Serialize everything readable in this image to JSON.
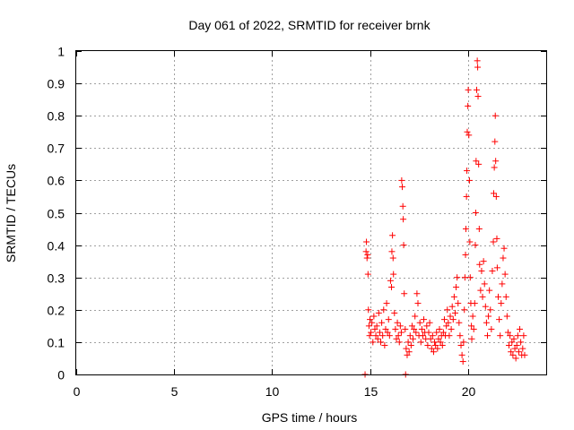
{
  "chart_data": {
    "type": "scatter",
    "title": "Day 061 of 2022, SRMTID for receiver brnk",
    "xlabel": "GPS time / hours",
    "ylabel": "SRMTID / TECUs",
    "xlim": [
      0,
      24
    ],
    "ylim": [
      0,
      1
    ],
    "x_ticks": [
      0,
      5,
      10,
      15,
      20
    ],
    "x_tick_labels": [
      "0",
      "5",
      "10",
      "15",
      "20"
    ],
    "y_ticks": [
      0,
      0.1,
      0.2,
      0.3,
      0.4,
      0.5,
      0.6,
      0.7,
      0.8,
      0.9,
      1
    ],
    "y_tick_labels": [
      "0",
      "0.1",
      "0.2",
      "0.3",
      "0.4",
      "0.5",
      "0.6",
      "0.7",
      "0.8",
      "0.9",
      "1"
    ],
    "grid": true,
    "marker": "+",
    "color": "#ff0000",
    "series": [
      {
        "name": "SRMTID",
        "points": [
          [
            14.75,
            0.0
          ],
          [
            14.8,
            0.38
          ],
          [
            14.82,
            0.41
          ],
          [
            14.85,
            0.36
          ],
          [
            14.88,
            0.37
          ],
          [
            14.9,
            0.31
          ],
          [
            14.92,
            0.2
          ],
          [
            14.95,
            0.15
          ],
          [
            14.98,
            0.12
          ],
          [
            15.0,
            0.17
          ],
          [
            15.05,
            0.13
          ],
          [
            15.1,
            0.16
          ],
          [
            15.15,
            0.1
          ],
          [
            15.2,
            0.18
          ],
          [
            15.25,
            0.14
          ],
          [
            15.3,
            0.12
          ],
          [
            15.35,
            0.15
          ],
          [
            15.4,
            0.11
          ],
          [
            15.45,
            0.19
          ],
          [
            15.5,
            0.13
          ],
          [
            15.55,
            0.1
          ],
          [
            15.6,
            0.16
          ],
          [
            15.65,
            0.12
          ],
          [
            15.7,
            0.2
          ],
          [
            15.75,
            0.09
          ],
          [
            15.8,
            0.14
          ],
          [
            15.85,
            0.22
          ],
          [
            15.9,
            0.13
          ],
          [
            15.95,
            0.17
          ],
          [
            16.0,
            0.12
          ],
          [
            16.05,
            0.29
          ],
          [
            16.1,
            0.27
          ],
          [
            16.12,
            0.38
          ],
          [
            16.15,
            0.43
          ],
          [
            16.18,
            0.36
          ],
          [
            16.2,
            0.31
          ],
          [
            16.25,
            0.19
          ],
          [
            16.3,
            0.14
          ],
          [
            16.35,
            0.11
          ],
          [
            16.4,
            0.16
          ],
          [
            16.45,
            0.12
          ],
          [
            16.5,
            0.1
          ],
          [
            16.55,
            0.15
          ],
          [
            16.6,
            0.13
          ],
          [
            16.62,
            0.6
          ],
          [
            16.65,
            0.58
          ],
          [
            16.68,
            0.52
          ],
          [
            16.7,
            0.48
          ],
          [
            16.72,
            0.4
          ],
          [
            16.75,
            0.25
          ],
          [
            16.8,
            0.14
          ],
          [
            16.82,
            0.0
          ],
          [
            16.85,
            0.08
          ],
          [
            16.9,
            0.06
          ],
          [
            16.95,
            0.1
          ],
          [
            17.0,
            0.07
          ],
          [
            17.05,
            0.12
          ],
          [
            17.1,
            0.09
          ],
          [
            17.15,
            0.15
          ],
          [
            17.2,
            0.11
          ],
          [
            17.25,
            0.14
          ],
          [
            17.3,
            0.18
          ],
          [
            17.35,
            0.13
          ],
          [
            17.4,
            0.25
          ],
          [
            17.45,
            0.22
          ],
          [
            17.5,
            0.12
          ],
          [
            17.55,
            0.16
          ],
          [
            17.6,
            0.1
          ],
          [
            17.65,
            0.14
          ],
          [
            17.7,
            0.12
          ],
          [
            17.75,
            0.17
          ],
          [
            17.8,
            0.13
          ],
          [
            17.85,
            0.11
          ],
          [
            17.9,
            0.15
          ],
          [
            17.95,
            0.09
          ],
          [
            18.0,
            0.13
          ],
          [
            18.05,
            0.16
          ],
          [
            18.1,
            0.11
          ],
          [
            18.15,
            0.08
          ],
          [
            18.2,
            0.12
          ],
          [
            18.25,
            0.07
          ],
          [
            18.3,
            0.1
          ],
          [
            18.35,
            0.09
          ],
          [
            18.4,
            0.13
          ],
          [
            18.45,
            0.08
          ],
          [
            18.5,
            0.11
          ],
          [
            18.55,
            0.14
          ],
          [
            18.6,
            0.1
          ],
          [
            18.65,
            0.12
          ],
          [
            18.7,
            0.09
          ],
          [
            18.75,
            0.13
          ],
          [
            18.8,
            0.17
          ],
          [
            18.85,
            0.12
          ],
          [
            18.9,
            0.15
          ],
          [
            18.95,
            0.2
          ],
          [
            19.0,
            0.16
          ],
          [
            19.05,
            0.12
          ],
          [
            19.1,
            0.18
          ],
          [
            19.15,
            0.14
          ],
          [
            19.2,
            0.21
          ],
          [
            19.25,
            0.17
          ],
          [
            19.3,
            0.24
          ],
          [
            19.35,
            0.19
          ],
          [
            19.4,
            0.27
          ],
          [
            19.45,
            0.3
          ],
          [
            19.5,
            0.22
          ],
          [
            19.55,
            0.16
          ],
          [
            19.6,
            0.12
          ],
          [
            19.65,
            0.09
          ],
          [
            19.7,
            0.06
          ],
          [
            19.75,
            0.04
          ],
          [
            19.78,
            0.1
          ],
          [
            19.82,
            0.2
          ],
          [
            19.85,
            0.3
          ],
          [
            19.88,
            0.37
          ],
          [
            19.9,
            0.45
          ],
          [
            19.93,
            0.55
          ],
          [
            19.95,
            0.63
          ],
          [
            19.97,
            0.75
          ],
          [
            20.0,
            0.83
          ],
          [
            20.02,
            0.88
          ],
          [
            20.05,
            0.74
          ],
          [
            20.08,
            0.6
          ],
          [
            20.1,
            0.41
          ],
          [
            20.12,
            0.3
          ],
          [
            20.15,
            0.22
          ],
          [
            20.18,
            0.15
          ],
          [
            20.2,
            0.11
          ],
          [
            20.25,
            0.18
          ],
          [
            20.3,
            0.14
          ],
          [
            20.35,
            0.22
          ],
          [
            20.38,
            0.4
          ],
          [
            20.4,
            0.5
          ],
          [
            20.42,
            0.66
          ],
          [
            20.45,
            0.88
          ],
          [
            20.48,
            0.97
          ],
          [
            20.5,
            0.95
          ],
          [
            20.52,
            0.86
          ],
          [
            20.55,
            0.65
          ],
          [
            20.58,
            0.45
          ],
          [
            20.6,
            0.34
          ],
          [
            20.65,
            0.26
          ],
          [
            20.7,
            0.32
          ],
          [
            20.75,
            0.24
          ],
          [
            20.8,
            0.35
          ],
          [
            20.85,
            0.28
          ],
          [
            20.9,
            0.21
          ],
          [
            20.95,
            0.16
          ],
          [
            21.0,
            0.12
          ],
          [
            21.05,
            0.18
          ],
          [
            21.1,
            0.26
          ],
          [
            21.15,
            0.2
          ],
          [
            21.2,
            0.14
          ],
          [
            21.25,
            0.32
          ],
          [
            21.3,
            0.41
          ],
          [
            21.32,
            0.56
          ],
          [
            21.35,
            0.64
          ],
          [
            21.38,
            0.72
          ],
          [
            21.4,
            0.8
          ],
          [
            21.42,
            0.66
          ],
          [
            21.45,
            0.55
          ],
          [
            21.48,
            0.42
          ],
          [
            21.5,
            0.33
          ],
          [
            21.55,
            0.24
          ],
          [
            21.6,
            0.17
          ],
          [
            21.65,
            0.12
          ],
          [
            21.7,
            0.22
          ],
          [
            21.75,
            0.28
          ],
          [
            21.8,
            0.36
          ],
          [
            21.85,
            0.39
          ],
          [
            21.9,
            0.31
          ],
          [
            21.95,
            0.24
          ],
          [
            22.0,
            0.18
          ],
          [
            22.05,
            0.13
          ],
          [
            22.1,
            0.09
          ],
          [
            22.15,
            0.12
          ],
          [
            22.2,
            0.07
          ],
          [
            22.25,
            0.1
          ],
          [
            22.3,
            0.06
          ],
          [
            22.35,
            0.11
          ],
          [
            22.4,
            0.08
          ],
          [
            22.45,
            0.05
          ],
          [
            22.5,
            0.09
          ],
          [
            22.55,
            0.12
          ],
          [
            22.6,
            0.07
          ],
          [
            22.65,
            0.14
          ],
          [
            22.7,
            0.1
          ],
          [
            22.75,
            0.06
          ],
          [
            22.8,
            0.08
          ],
          [
            22.85,
            0.12
          ],
          [
            22.9,
            0.06
          ]
        ]
      }
    ]
  }
}
